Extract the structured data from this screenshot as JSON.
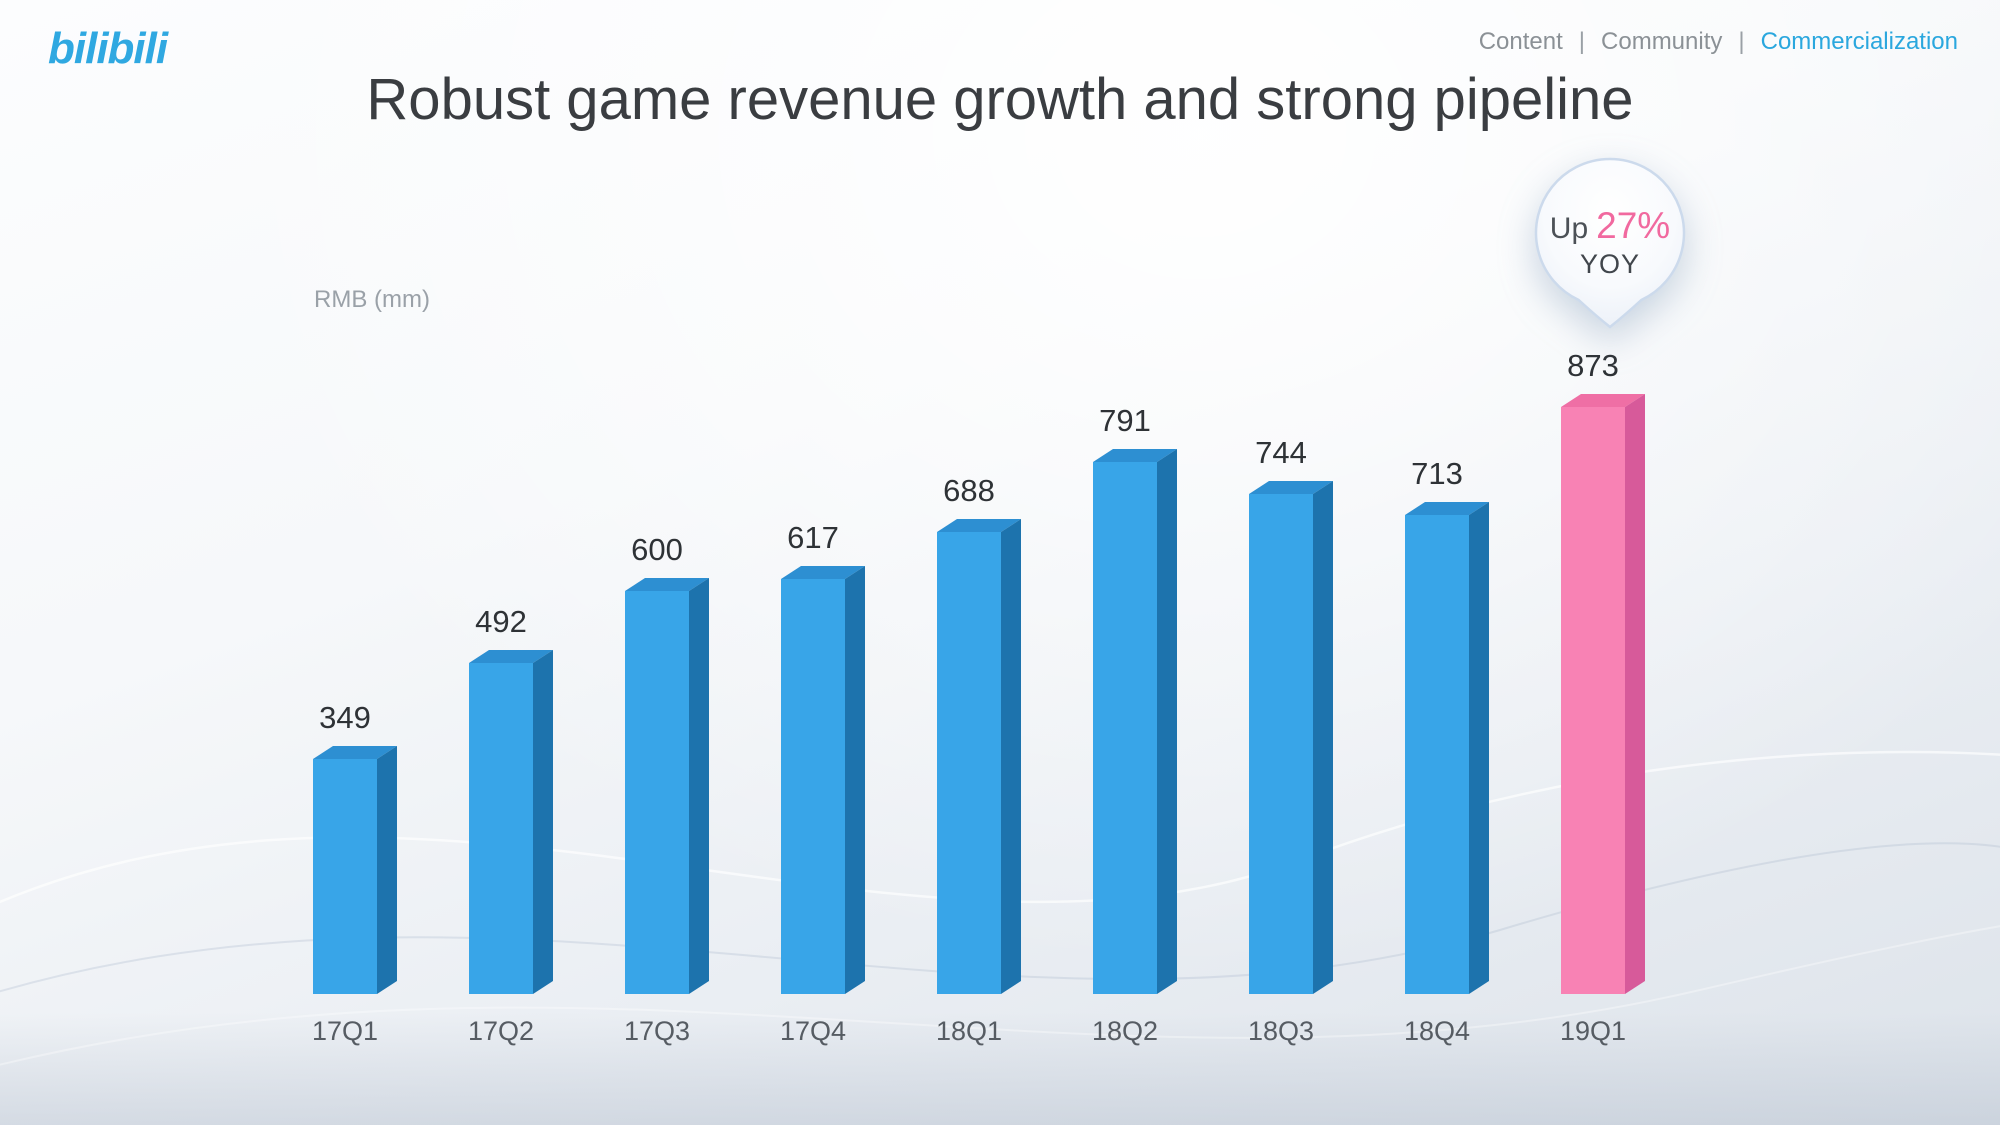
{
  "logo": {
    "text": "bilibili"
  },
  "nav": {
    "separator": "|",
    "items": [
      {
        "label": "Content",
        "active": false
      },
      {
        "label": "Community",
        "active": false
      },
      {
        "label": "Commercialization",
        "active": true
      }
    ],
    "active_color": "#2aa7de",
    "inactive_color": "#8b9196"
  },
  "title": "Robust game revenue growth and strong pipeline",
  "chart": {
    "axis_label": "RMB (mm)"
  },
  "callout": {
    "up_label": "Up",
    "value": "27%",
    "yoy_label": "YOY"
  },
  "chart_data": {
    "type": "bar",
    "categories": [
      "17Q1",
      "17Q2",
      "17Q3",
      "17Q4",
      "18Q1",
      "18Q2",
      "18Q3",
      "18Q4",
      "19Q1"
    ],
    "values": [
      349,
      492,
      600,
      617,
      688,
      791,
      744,
      713,
      873
    ],
    "title": "Robust game revenue growth and strong pipeline",
    "ylabel": "RMB (mm)",
    "xlabel": "",
    "ylim": [
      0,
      950
    ],
    "grid": false,
    "legend": false,
    "highlight_index": 8,
    "annotation": "Up 27% YOY",
    "bar_colors": {
      "front": "#38a5e8",
      "top": "#2d8fd2",
      "side": "#1d73ad"
    },
    "highlight_colors": {
      "front": "#f882b4",
      "top": "#ef6fa5",
      "side": "#d75a9a"
    }
  }
}
